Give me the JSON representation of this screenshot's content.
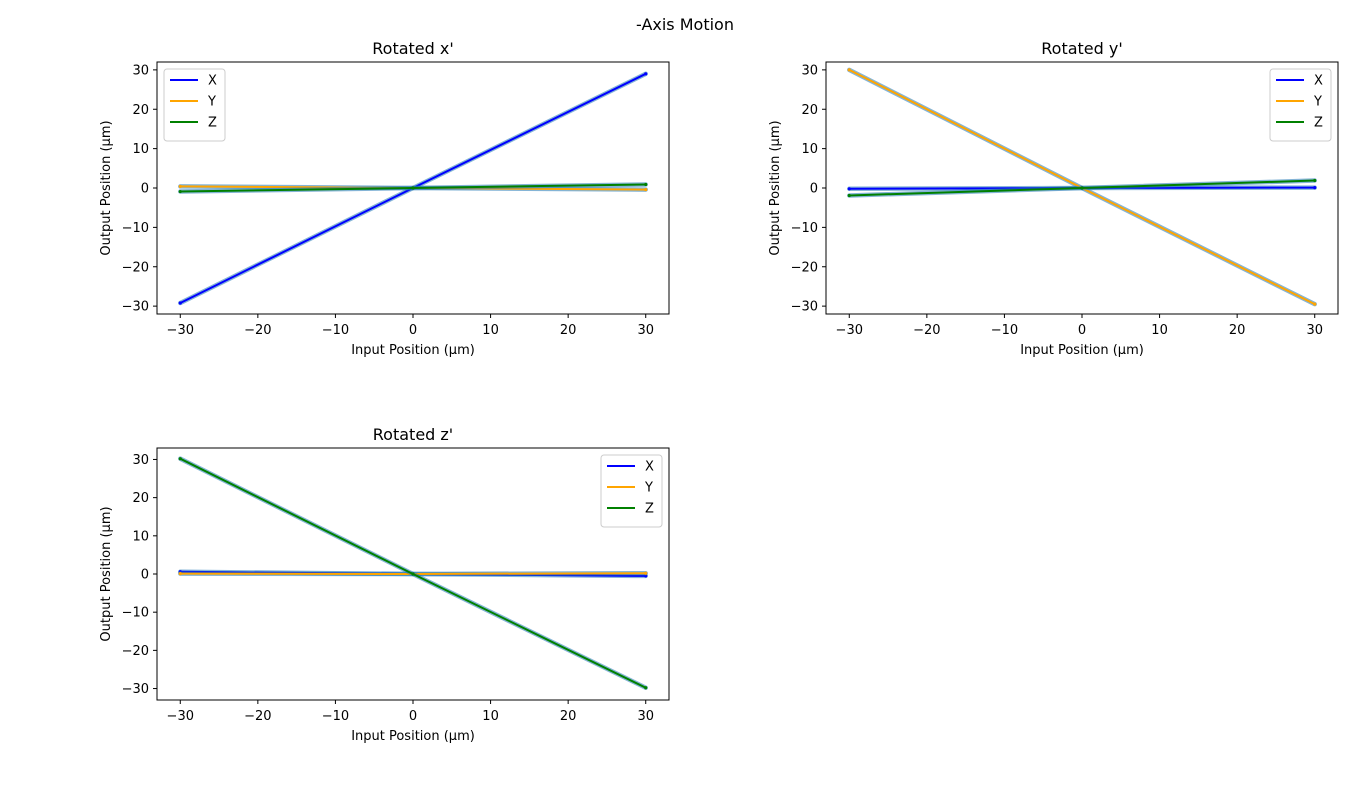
{
  "figure": {
    "suptitle": "-Axis Motion"
  },
  "chart_data": [
    {
      "type": "line",
      "title": "Rotated x'",
      "xlabel": "Input Position (µm)",
      "ylabel": "Output Position (µm)",
      "xlim": [
        -33,
        33
      ],
      "ylim": [
        -32,
        32
      ],
      "xticks": [
        -30,
        -20,
        -10,
        0,
        10,
        20,
        30
      ],
      "yticks": [
        -30,
        -20,
        -10,
        0,
        10,
        20,
        30
      ],
      "xtick_labels": [
        "−30",
        "−20",
        "−10",
        "0",
        "10",
        "20",
        "30"
      ],
      "ytick_labels": [
        "−30",
        "−20",
        "−10",
        "0",
        "10",
        "20",
        "30"
      ],
      "grid": false,
      "legend": "top-left",
      "x": [
        -30,
        0,
        30
      ],
      "series": [
        {
          "name": "X",
          "color": "#0000ff",
          "values": [
            -29.2,
            0,
            29.0
          ]
        },
        {
          "name": "Y",
          "color": "#ffa500",
          "values": [
            0.4,
            0,
            -0.4
          ]
        },
        {
          "name": "Z",
          "color": "#008000",
          "values": [
            -0.9,
            0,
            0.9
          ]
        }
      ]
    },
    {
      "type": "line",
      "title": "Rotated y'",
      "xlabel": "Input Position (µm)",
      "ylabel": "Output Position (µm)",
      "xlim": [
        -33,
        33
      ],
      "ylim": [
        -32,
        32
      ],
      "xticks": [
        -30,
        -20,
        -10,
        0,
        10,
        20,
        30
      ],
      "yticks": [
        -30,
        -20,
        -10,
        0,
        10,
        20,
        30
      ],
      "xtick_labels": [
        "−30",
        "−20",
        "−10",
        "0",
        "10",
        "20",
        "30"
      ],
      "ytick_labels": [
        "−30",
        "−20",
        "−10",
        "0",
        "10",
        "20",
        "30"
      ],
      "grid": false,
      "legend": "top-right",
      "x": [
        -30,
        0,
        30
      ],
      "series": [
        {
          "name": "X",
          "color": "#0000ff",
          "values": [
            -0.2,
            0,
            0.1
          ]
        },
        {
          "name": "Y",
          "color": "#ffa500",
          "values": [
            30.0,
            0,
            -29.5
          ]
        },
        {
          "name": "Z",
          "color": "#008000",
          "values": [
            -1.9,
            0,
            1.9
          ]
        }
      ]
    },
    {
      "type": "line",
      "title": "Rotated z'",
      "xlabel": "Input Position (µm)",
      "ylabel": "Output Position (µm)",
      "xlim": [
        -33,
        33
      ],
      "ylim": [
        -33,
        33
      ],
      "xticks": [
        -30,
        -20,
        -10,
        0,
        10,
        20,
        30
      ],
      "yticks": [
        -30,
        -20,
        -10,
        0,
        10,
        20,
        30
      ],
      "xtick_labels": [
        "−30",
        "−20",
        "−10",
        "0",
        "10",
        "20",
        "30"
      ],
      "ytick_labels": [
        "−30",
        "−20",
        "−10",
        "0",
        "10",
        "20",
        "30"
      ],
      "grid": false,
      "legend": "top-right",
      "x": [
        -30,
        0,
        30
      ],
      "series": [
        {
          "name": "X",
          "color": "#0000ff",
          "values": [
            0.6,
            0,
            -0.5
          ]
        },
        {
          "name": "Y",
          "color": "#ffa500",
          "values": [
            0.1,
            0,
            0.2
          ]
        },
        {
          "name": "Z",
          "color": "#008000",
          "values": [
            30.2,
            0,
            -29.8
          ]
        }
      ]
    }
  ]
}
